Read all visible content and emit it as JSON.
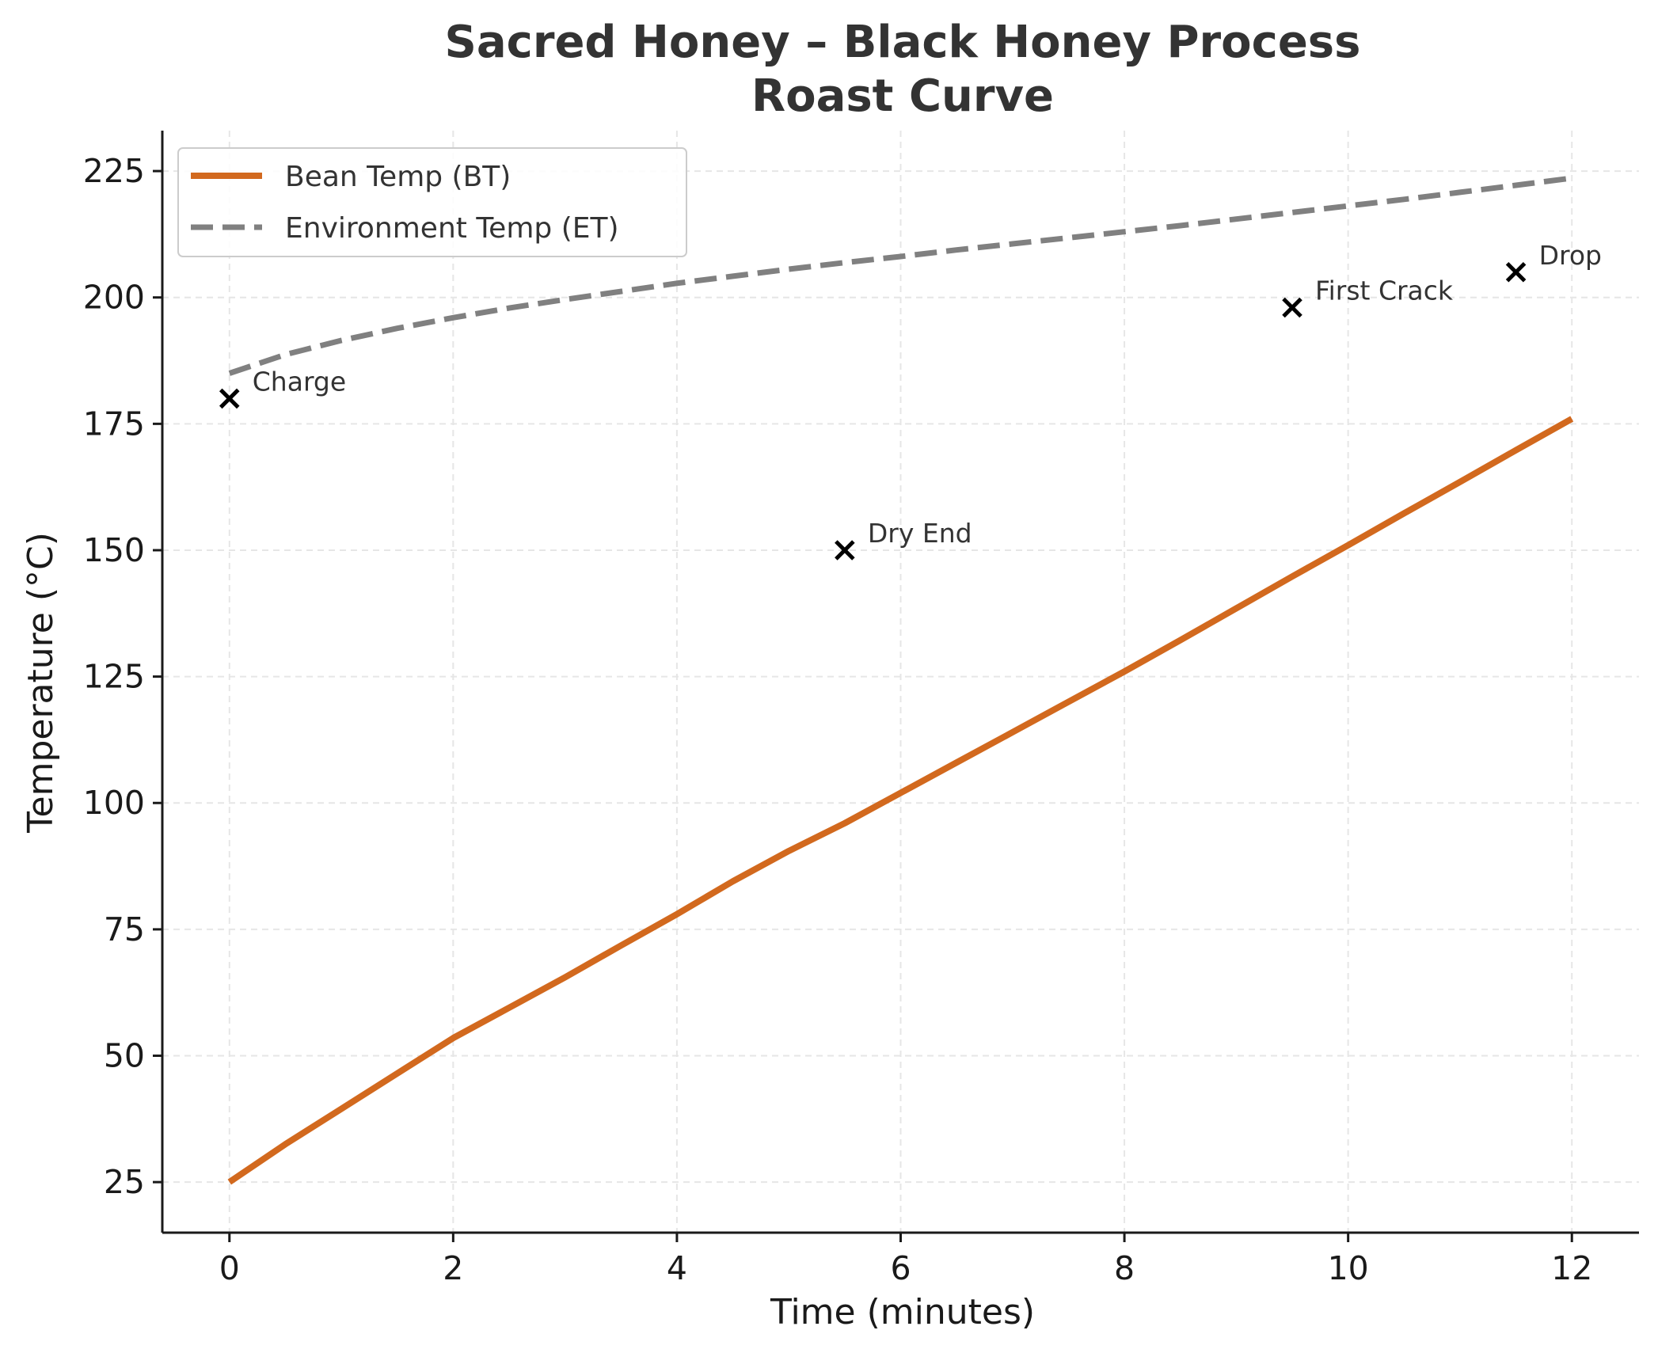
{
  "chart_data": {
    "type": "line",
    "title": [
      "Sacred Honey – Black Honey Process",
      "Roast Curve"
    ],
    "xlabel": "Time (minutes)",
    "ylabel": "Temperature (°C)",
    "xlim": [
      -0.6,
      12.6
    ],
    "ylim": [
      15,
      233
    ],
    "xticks": [
      0,
      2,
      4,
      6,
      8,
      10,
      12
    ],
    "yticks": [
      25,
      50,
      75,
      100,
      125,
      150,
      175,
      200,
      225
    ],
    "grid": true,
    "legend_position": "top-left",
    "series": [
      {
        "name": "Bean Temp (BT)",
        "color": "#d2691e",
        "style": "solid",
        "x": [
          0,
          0.5,
          1,
          1.5,
          2,
          2.5,
          3,
          3.5,
          4,
          4.5,
          5,
          5.5,
          6,
          6.5,
          7,
          7.5,
          8,
          8.5,
          9,
          9.5,
          10,
          10.5,
          11,
          11.5,
          12
        ],
        "y": [
          25,
          32.5,
          39.5,
          46.5,
          53.5,
          59.5,
          65.5,
          71.8,
          78,
          84.5,
          90.5,
          96,
          102,
          108,
          114,
          120,
          126,
          132.2,
          138.5,
          144.8,
          151,
          157.3,
          163.5,
          169.8,
          176
        ]
      },
      {
        "name": "Environment Temp (ET)",
        "color": "#808080",
        "style": "dashed",
        "x": [
          0,
          0.5,
          1,
          1.5,
          2,
          2.5,
          3,
          3.5,
          4,
          4.5,
          5,
          5.5,
          6,
          6.5,
          7,
          7.5,
          8,
          8.5,
          9,
          9.5,
          10,
          10.5,
          11,
          11.5,
          12
        ],
        "y": [
          185,
          188.7,
          191.5,
          193.9,
          196,
          197.9,
          199.6,
          201.2,
          202.8,
          204.2,
          205.6,
          206.9,
          208.1,
          209.4,
          210.6,
          211.8,
          213,
          214.2,
          215.5,
          216.8,
          218.1,
          219.4,
          220.8,
          222.2,
          223.6
        ]
      }
    ],
    "annotations": [
      {
        "label": "Charge",
        "x": 0,
        "y": 180
      },
      {
        "label": "Dry End",
        "x": 5.5,
        "y": 150
      },
      {
        "label": "First Crack",
        "x": 9.5,
        "y": 198
      },
      {
        "label": "Drop",
        "x": 11.5,
        "y": 205
      }
    ]
  }
}
